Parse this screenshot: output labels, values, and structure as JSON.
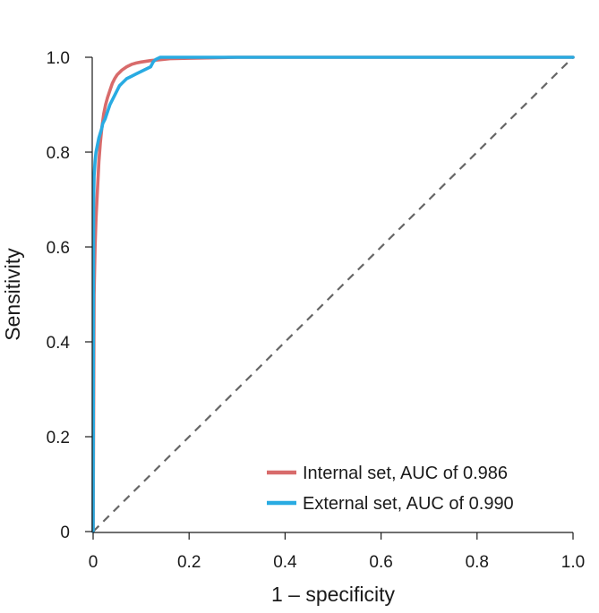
{
  "chart_data": {
    "type": "line",
    "title": "",
    "xlabel": "1 – specificity",
    "ylabel": "Sensitivity",
    "xlim": [
      0,
      1
    ],
    "ylim": [
      0,
      1
    ],
    "xticks": [
      0,
      0.2,
      0.4,
      0.6,
      0.8,
      1.0
    ],
    "xtick_labels": [
      "0",
      "0.2",
      "0.4",
      "0.6",
      "0.8",
      "1.0"
    ],
    "yticks": [
      0,
      0.2,
      0.4,
      0.6,
      0.8,
      1.0
    ],
    "ytick_labels": [
      "0",
      "0.2",
      "0.4",
      "0.6",
      "0.8",
      "1.0"
    ],
    "grid": false,
    "legend_position": "bottom-right",
    "series": [
      {
        "name": "Internal set, AUC of 0.986",
        "color": "#d86b6b",
        "x": [
          0,
          0.002,
          0.004,
          0.006,
          0.008,
          0.01,
          0.012,
          0.015,
          0.018,
          0.022,
          0.026,
          0.03,
          0.035,
          0.04,
          0.045,
          0.05,
          0.06,
          0.07,
          0.08,
          0.09,
          0.1,
          0.12,
          0.14,
          0.16,
          0.2,
          0.25,
          0.3,
          1.0
        ],
        "y": [
          0,
          0.5,
          0.6,
          0.66,
          0.7,
          0.74,
          0.78,
          0.82,
          0.85,
          0.88,
          0.9,
          0.915,
          0.93,
          0.945,
          0.955,
          0.963,
          0.973,
          0.98,
          0.985,
          0.988,
          0.99,
          0.993,
          0.995,
          0.997,
          0.998,
          0.999,
          1.0,
          1.0
        ]
      },
      {
        "name": "External set, AUC of 0.990",
        "color": "#29abe2",
        "x": [
          0,
          0.001,
          0.002,
          0.004,
          0.006,
          0.008,
          0.01,
          0.012,
          0.015,
          0.018,
          0.02,
          0.025,
          0.03,
          0.035,
          0.04,
          0.045,
          0.05,
          0.055,
          0.06,
          0.065,
          0.07,
          0.08,
          0.09,
          0.1,
          0.11,
          0.12,
          0.125,
          0.13,
          0.14,
          0.2,
          0.3,
          1.0
        ],
        "y": [
          0,
          0.7,
          0.75,
          0.78,
          0.8,
          0.81,
          0.82,
          0.83,
          0.84,
          0.85,
          0.86,
          0.87,
          0.885,
          0.9,
          0.91,
          0.92,
          0.93,
          0.94,
          0.945,
          0.95,
          0.955,
          0.96,
          0.965,
          0.97,
          0.975,
          0.98,
          0.99,
          0.995,
          1.0,
          1.0,
          1.0,
          1.0
        ]
      }
    ],
    "reference_line": {
      "x": [
        0,
        1
      ],
      "y": [
        0,
        1
      ],
      "color": "#666666",
      "style": "dashed"
    }
  }
}
